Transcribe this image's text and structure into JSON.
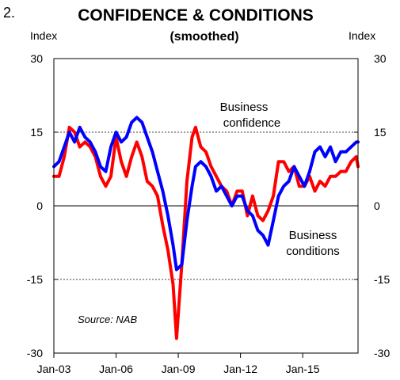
{
  "figure_number": "2.",
  "chart_data": {
    "type": "line",
    "title": "CONFIDENCE & CONDITIONS",
    "subtitle": "(smoothed)",
    "left_axis_label": "Index",
    "right_axis_label": "Index",
    "ylim": [
      -30,
      30
    ],
    "y_ticks": [
      30,
      15,
      0,
      -15,
      -30
    ],
    "y_tick_labels": [
      "30",
      "15",
      "0",
      "-15",
      "-30"
    ],
    "dashed_gridlines": [
      15,
      -15
    ],
    "zero_line": true,
    "x_range": [
      "2003-01",
      "2017-09"
    ],
    "x_ticks": [
      "2003-01",
      "2006-01",
      "2009-01",
      "2012-01",
      "2015-01"
    ],
    "x_tick_labels": [
      "Jan-03",
      "Jan-06",
      "Jan-09",
      "Jan-12",
      "Jan-15"
    ],
    "source": "Source: NAB",
    "series": [
      {
        "name": "Business confidence",
        "label_lines": [
          "Business",
          "confidence"
        ],
        "color": "#ff0000",
        "points": [
          [
            "2003-01",
            6
          ],
          [
            "2003-04",
            6
          ],
          [
            "2003-07",
            10
          ],
          [
            "2003-10",
            16
          ],
          [
            "2004-01",
            15
          ],
          [
            "2004-04",
            12
          ],
          [
            "2004-07",
            13
          ],
          [
            "2004-10",
            12
          ],
          [
            "2005-01",
            10
          ],
          [
            "2005-04",
            6
          ],
          [
            "2005-07",
            4
          ],
          [
            "2005-10",
            6
          ],
          [
            "2006-01",
            14
          ],
          [
            "2006-04",
            9
          ],
          [
            "2006-07",
            6
          ],
          [
            "2006-10",
            10
          ],
          [
            "2007-01",
            13
          ],
          [
            "2007-04",
            10
          ],
          [
            "2007-07",
            5
          ],
          [
            "2007-10",
            4
          ],
          [
            "2008-01",
            2
          ],
          [
            "2008-04",
            -4
          ],
          [
            "2008-07",
            -9
          ],
          [
            "2008-10",
            -16
          ],
          [
            "2008-12",
            -27
          ],
          [
            "2009-03",
            -12
          ],
          [
            "2009-06",
            5
          ],
          [
            "2009-09",
            14
          ],
          [
            "2009-11",
            16
          ],
          [
            "2010-02",
            12
          ],
          [
            "2010-05",
            11
          ],
          [
            "2010-08",
            8
          ],
          [
            "2010-11",
            6
          ],
          [
            "2011-02",
            4
          ],
          [
            "2011-05",
            3
          ],
          [
            "2011-08",
            0
          ],
          [
            "2011-11",
            3
          ],
          [
            "2012-02",
            3
          ],
          [
            "2012-05",
            -2
          ],
          [
            "2012-08",
            2
          ],
          [
            "2012-11",
            -2
          ],
          [
            "2013-02",
            -3
          ],
          [
            "2013-05",
            -1
          ],
          [
            "2013-08",
            2
          ],
          [
            "2013-11",
            9
          ],
          [
            "2014-02",
            9
          ],
          [
            "2014-05",
            7
          ],
          [
            "2014-08",
            8
          ],
          [
            "2014-11",
            4
          ],
          [
            "2015-02",
            4
          ],
          [
            "2015-05",
            6
          ],
          [
            "2015-08",
            3
          ],
          [
            "2015-11",
            5
          ],
          [
            "2016-02",
            4
          ],
          [
            "2016-05",
            6
          ],
          [
            "2016-08",
            6
          ],
          [
            "2016-11",
            7
          ],
          [
            "2017-02",
            7
          ],
          [
            "2017-05",
            9
          ],
          [
            "2017-08",
            10
          ],
          [
            "2017-09",
            8
          ]
        ]
      },
      {
        "name": "Business conditions",
        "label_lines": [
          "Business",
          "conditions"
        ],
        "color": "#0000ff",
        "points": [
          [
            "2003-01",
            8
          ],
          [
            "2003-04",
            9
          ],
          [
            "2003-07",
            12
          ],
          [
            "2003-10",
            15
          ],
          [
            "2004-01",
            13
          ],
          [
            "2004-04",
            16
          ],
          [
            "2004-07",
            14
          ],
          [
            "2004-10",
            13
          ],
          [
            "2005-01",
            11
          ],
          [
            "2005-04",
            8
          ],
          [
            "2005-07",
            7
          ],
          [
            "2005-10",
            12
          ],
          [
            "2006-01",
            15
          ],
          [
            "2006-04",
            13
          ],
          [
            "2006-07",
            14
          ],
          [
            "2006-10",
            17
          ],
          [
            "2007-01",
            18
          ],
          [
            "2007-04",
            17
          ],
          [
            "2007-07",
            14
          ],
          [
            "2007-10",
            11
          ],
          [
            "2008-01",
            7
          ],
          [
            "2008-04",
            3
          ],
          [
            "2008-07",
            -2
          ],
          [
            "2008-10",
            -8
          ],
          [
            "2008-12",
            -13
          ],
          [
            "2009-03",
            -12
          ],
          [
            "2009-06",
            -3
          ],
          [
            "2009-09",
            4
          ],
          [
            "2009-11",
            8
          ],
          [
            "2010-02",
            9
          ],
          [
            "2010-05",
            8
          ],
          [
            "2010-08",
            6
          ],
          [
            "2010-11",
            3
          ],
          [
            "2011-02",
            4
          ],
          [
            "2011-05",
            2
          ],
          [
            "2011-08",
            0
          ],
          [
            "2011-11",
            2
          ],
          [
            "2012-02",
            2
          ],
          [
            "2012-05",
            -1
          ],
          [
            "2012-08",
            -2
          ],
          [
            "2012-11",
            -5
          ],
          [
            "2013-02",
            -6
          ],
          [
            "2013-05",
            -8
          ],
          [
            "2013-08",
            -3
          ],
          [
            "2013-11",
            2
          ],
          [
            "2014-02",
            4
          ],
          [
            "2014-05",
            5
          ],
          [
            "2014-08",
            8
          ],
          [
            "2014-11",
            6
          ],
          [
            "2015-02",
            4
          ],
          [
            "2015-05",
            7
          ],
          [
            "2015-08",
            11
          ],
          [
            "2015-11",
            12
          ],
          [
            "2016-02",
            10
          ],
          [
            "2016-05",
            12
          ],
          [
            "2016-08",
            9
          ],
          [
            "2016-11",
            11
          ],
          [
            "2017-02",
            11
          ],
          [
            "2017-05",
            12
          ],
          [
            "2017-08",
            13
          ],
          [
            "2017-09",
            13
          ]
        ]
      }
    ]
  }
}
